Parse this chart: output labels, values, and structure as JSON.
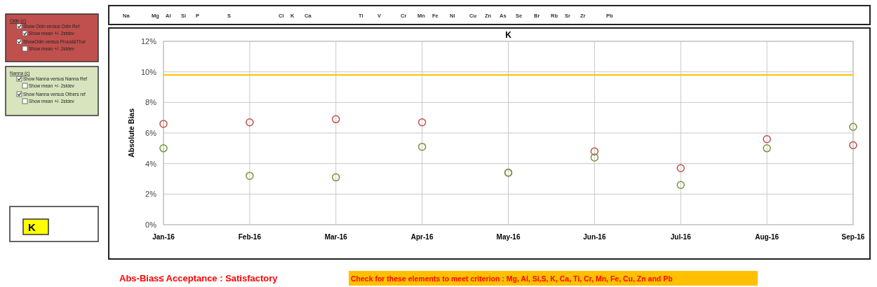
{
  "chart_data": {
    "type": "scatter",
    "title": "K",
    "ylabel": "Absolute Bias",
    "categories": [
      "Jan-16",
      "Feb-16",
      "Mar-16",
      "Apr-16",
      "May-16",
      "Jun-16",
      "Jul-16",
      "Aug-16",
      "Sep-16"
    ],
    "series": [
      {
        "color": "#c0504d",
        "values": [
          6.6,
          6.7,
          6.9,
          6.7,
          3.4,
          4.8,
          3.7,
          5.6,
          5.2
        ]
      },
      {
        "color": "#77933c",
        "values": [
          5.0,
          3.2,
          3.1,
          5.1,
          3.4,
          4.4,
          2.6,
          5.0,
          6.4
        ]
      }
    ],
    "ylim": [
      0,
      12
    ],
    "yticks": [
      {
        "value": 0,
        "label": "0%"
      },
      {
        "value": 2,
        "label": "2%"
      },
      {
        "value": 4,
        "label": "4%"
      },
      {
        "value": 6,
        "label": "6%"
      },
      {
        "value": 8,
        "label": "8%"
      },
      {
        "value": 10,
        "label": "10%"
      },
      {
        "value": 12,
        "label": "12%"
      }
    ],
    "ref_lines": [
      {
        "axis": "y",
        "value": 9.8,
        "color": "#ffc000"
      }
    ],
    "grid": true,
    "marker": "circle",
    "annotations": [
      "Na",
      "Mg",
      "Al",
      "Si",
      "P",
      "S",
      "Cl",
      "K",
      "Ca",
      "Ti",
      "V",
      "Cr",
      "Mn",
      "Fe",
      "Ni",
      "Cu",
      "Zn",
      "As",
      "Se",
      "Br",
      "Rb",
      "Sr",
      "Zr",
      "Pb",
      "Odin (c)",
      "Show Odin versus Odin Ref",
      "Show mean +/- 2stdev",
      "ShowOdin versus Proust&Thor",
      "Show mean +/- 2stdev",
      "Nanna (c)",
      "Show Nanna versus Nanna Ref",
      "Show mean +/- 2stdev",
      "Show Nanna versus Others ref",
      "Show mean +/- 2stdev",
      "K",
      "Abs-Bias≤ Acceptance : Satisfactory",
      "Check for these elements to meet criterion : Mg, Al, Si,S, K, Ca, Ti, Cr, Mn, Fe, Cu, Zn and Pb"
    ]
  }
}
